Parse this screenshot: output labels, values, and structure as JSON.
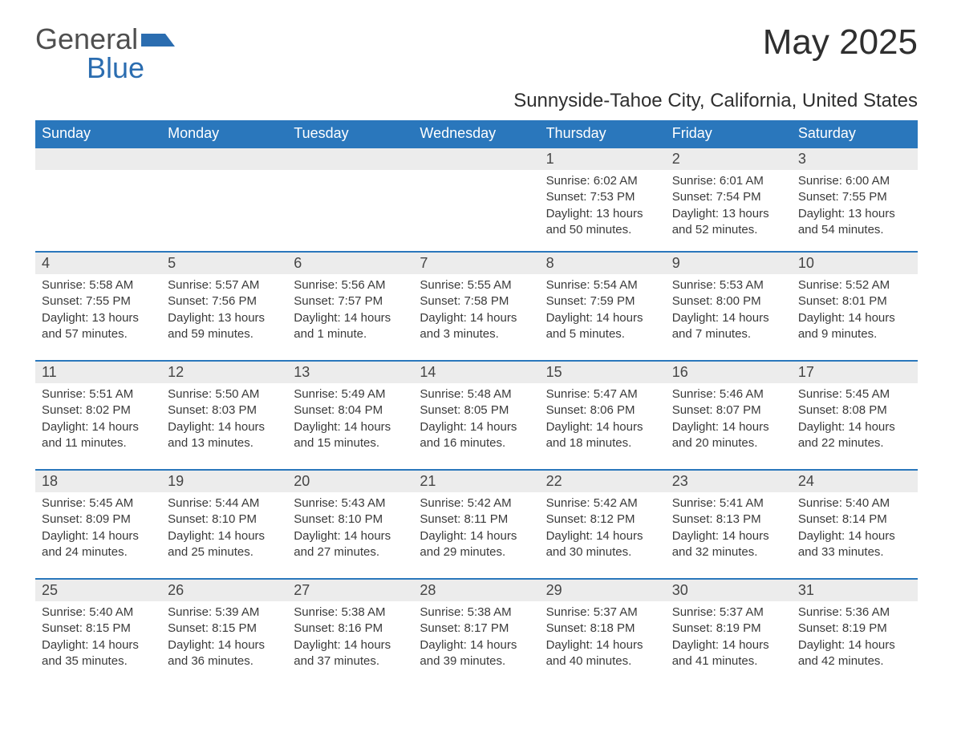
{
  "logo": {
    "word1": "General",
    "word2": "Blue",
    "accent_color": "#2b6db0",
    "text_color": "#4f4f4f"
  },
  "title": "May 2025",
  "subtitle": "Sunnyside-Tahoe City, California, United States",
  "colors": {
    "header_bg": "#2a77bc",
    "header_text": "#ffffff",
    "daynum_bg": "#ececec",
    "daynum_border": "#2a77bc",
    "body_text": "#3a3a3a",
    "page_bg": "#ffffff"
  },
  "fontsizes": {
    "title": 44,
    "subtitle": 24,
    "weekday": 18,
    "daynum": 18,
    "body": 15
  },
  "weekdays": [
    "Sunday",
    "Monday",
    "Tuesday",
    "Wednesday",
    "Thursday",
    "Friday",
    "Saturday"
  ],
  "weeks": [
    [
      {
        "n": "",
        "sr": "",
        "ss": "",
        "dl": ""
      },
      {
        "n": "",
        "sr": "",
        "ss": "",
        "dl": ""
      },
      {
        "n": "",
        "sr": "",
        "ss": "",
        "dl": ""
      },
      {
        "n": "",
        "sr": "",
        "ss": "",
        "dl": ""
      },
      {
        "n": "1",
        "sr": "Sunrise: 6:02 AM",
        "ss": "Sunset: 7:53 PM",
        "dl": "Daylight: 13 hours and 50 minutes."
      },
      {
        "n": "2",
        "sr": "Sunrise: 6:01 AM",
        "ss": "Sunset: 7:54 PM",
        "dl": "Daylight: 13 hours and 52 minutes."
      },
      {
        "n": "3",
        "sr": "Sunrise: 6:00 AM",
        "ss": "Sunset: 7:55 PM",
        "dl": "Daylight: 13 hours and 54 minutes."
      }
    ],
    [
      {
        "n": "4",
        "sr": "Sunrise: 5:58 AM",
        "ss": "Sunset: 7:55 PM",
        "dl": "Daylight: 13 hours and 57 minutes."
      },
      {
        "n": "5",
        "sr": "Sunrise: 5:57 AM",
        "ss": "Sunset: 7:56 PM",
        "dl": "Daylight: 13 hours and 59 minutes."
      },
      {
        "n": "6",
        "sr": "Sunrise: 5:56 AM",
        "ss": "Sunset: 7:57 PM",
        "dl": "Daylight: 14 hours and 1 minute."
      },
      {
        "n": "7",
        "sr": "Sunrise: 5:55 AM",
        "ss": "Sunset: 7:58 PM",
        "dl": "Daylight: 14 hours and 3 minutes."
      },
      {
        "n": "8",
        "sr": "Sunrise: 5:54 AM",
        "ss": "Sunset: 7:59 PM",
        "dl": "Daylight: 14 hours and 5 minutes."
      },
      {
        "n": "9",
        "sr": "Sunrise: 5:53 AM",
        "ss": "Sunset: 8:00 PM",
        "dl": "Daylight: 14 hours and 7 minutes."
      },
      {
        "n": "10",
        "sr": "Sunrise: 5:52 AM",
        "ss": "Sunset: 8:01 PM",
        "dl": "Daylight: 14 hours and 9 minutes."
      }
    ],
    [
      {
        "n": "11",
        "sr": "Sunrise: 5:51 AM",
        "ss": "Sunset: 8:02 PM",
        "dl": "Daylight: 14 hours and 11 minutes."
      },
      {
        "n": "12",
        "sr": "Sunrise: 5:50 AM",
        "ss": "Sunset: 8:03 PM",
        "dl": "Daylight: 14 hours and 13 minutes."
      },
      {
        "n": "13",
        "sr": "Sunrise: 5:49 AM",
        "ss": "Sunset: 8:04 PM",
        "dl": "Daylight: 14 hours and 15 minutes."
      },
      {
        "n": "14",
        "sr": "Sunrise: 5:48 AM",
        "ss": "Sunset: 8:05 PM",
        "dl": "Daylight: 14 hours and 16 minutes."
      },
      {
        "n": "15",
        "sr": "Sunrise: 5:47 AM",
        "ss": "Sunset: 8:06 PM",
        "dl": "Daylight: 14 hours and 18 minutes."
      },
      {
        "n": "16",
        "sr": "Sunrise: 5:46 AM",
        "ss": "Sunset: 8:07 PM",
        "dl": "Daylight: 14 hours and 20 minutes."
      },
      {
        "n": "17",
        "sr": "Sunrise: 5:45 AM",
        "ss": "Sunset: 8:08 PM",
        "dl": "Daylight: 14 hours and 22 minutes."
      }
    ],
    [
      {
        "n": "18",
        "sr": "Sunrise: 5:45 AM",
        "ss": "Sunset: 8:09 PM",
        "dl": "Daylight: 14 hours and 24 minutes."
      },
      {
        "n": "19",
        "sr": "Sunrise: 5:44 AM",
        "ss": "Sunset: 8:10 PM",
        "dl": "Daylight: 14 hours and 25 minutes."
      },
      {
        "n": "20",
        "sr": "Sunrise: 5:43 AM",
        "ss": "Sunset: 8:10 PM",
        "dl": "Daylight: 14 hours and 27 minutes."
      },
      {
        "n": "21",
        "sr": "Sunrise: 5:42 AM",
        "ss": "Sunset: 8:11 PM",
        "dl": "Daylight: 14 hours and 29 minutes."
      },
      {
        "n": "22",
        "sr": "Sunrise: 5:42 AM",
        "ss": "Sunset: 8:12 PM",
        "dl": "Daylight: 14 hours and 30 minutes."
      },
      {
        "n": "23",
        "sr": "Sunrise: 5:41 AM",
        "ss": "Sunset: 8:13 PM",
        "dl": "Daylight: 14 hours and 32 minutes."
      },
      {
        "n": "24",
        "sr": "Sunrise: 5:40 AM",
        "ss": "Sunset: 8:14 PM",
        "dl": "Daylight: 14 hours and 33 minutes."
      }
    ],
    [
      {
        "n": "25",
        "sr": "Sunrise: 5:40 AM",
        "ss": "Sunset: 8:15 PM",
        "dl": "Daylight: 14 hours and 35 minutes."
      },
      {
        "n": "26",
        "sr": "Sunrise: 5:39 AM",
        "ss": "Sunset: 8:15 PM",
        "dl": "Daylight: 14 hours and 36 minutes."
      },
      {
        "n": "27",
        "sr": "Sunrise: 5:38 AM",
        "ss": "Sunset: 8:16 PM",
        "dl": "Daylight: 14 hours and 37 minutes."
      },
      {
        "n": "28",
        "sr": "Sunrise: 5:38 AM",
        "ss": "Sunset: 8:17 PM",
        "dl": "Daylight: 14 hours and 39 minutes."
      },
      {
        "n": "29",
        "sr": "Sunrise: 5:37 AM",
        "ss": "Sunset: 8:18 PM",
        "dl": "Daylight: 14 hours and 40 minutes."
      },
      {
        "n": "30",
        "sr": "Sunrise: 5:37 AM",
        "ss": "Sunset: 8:19 PM",
        "dl": "Daylight: 14 hours and 41 minutes."
      },
      {
        "n": "31",
        "sr": "Sunrise: 5:36 AM",
        "ss": "Sunset: 8:19 PM",
        "dl": "Daylight: 14 hours and 42 minutes."
      }
    ]
  ]
}
